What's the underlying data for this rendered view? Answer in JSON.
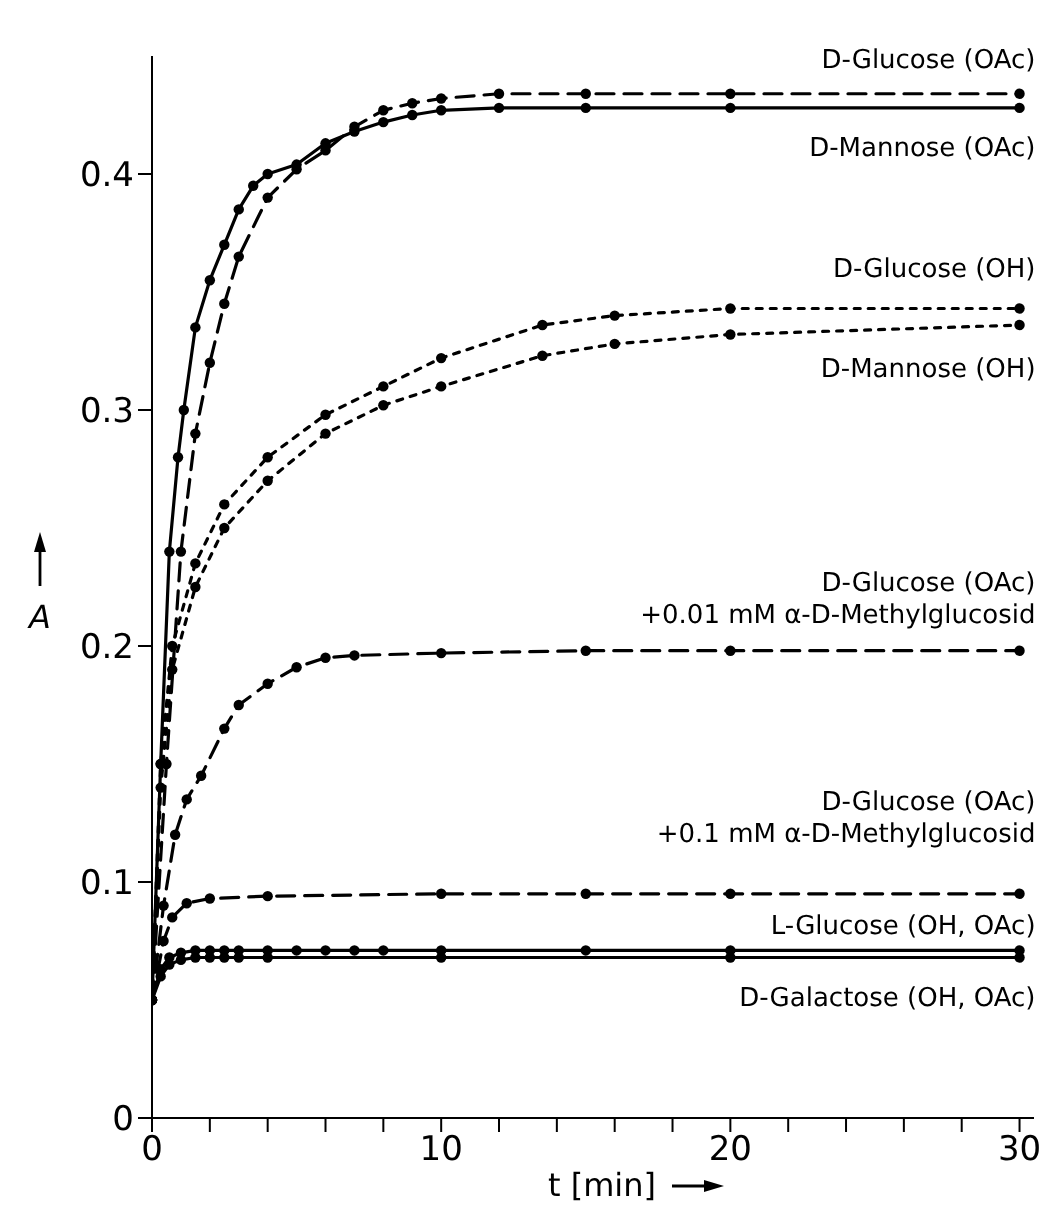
{
  "chart_data": {
    "type": "line",
    "xlabel": "t [min]",
    "ylabel": "A",
    "xlim": [
      0,
      30.5
    ],
    "ylim": [
      0,
      0.45
    ],
    "xticks": [
      0,
      {
        "value": 2,
        "label": null
      },
      {
        "value": 4,
        "label": null
      },
      {
        "value": 6,
        "label": null
      },
      {
        "value": 8,
        "label": null
      },
      10,
      {
        "value": 12,
        "label": null
      },
      {
        "value": 14,
        "label": null
      },
      {
        "value": 16,
        "label": null
      },
      {
        "value": 18,
        "label": null
      },
      20,
      {
        "value": 22,
        "label": null
      },
      {
        "value": 24,
        "label": null
      },
      {
        "value": 26,
        "label": null
      },
      {
        "value": 28,
        "label": null
      },
      30
    ],
    "yticks": [
      0,
      0.1,
      0.2,
      0.3,
      0.4
    ],
    "grid": false,
    "marker": "circle",
    "series": [
      {
        "name": "D-Glucose (OAc)",
        "color": "#000000",
        "line_style": "dashed",
        "x": [
          0,
          0.5,
          1,
          1.5,
          2,
          2.5,
          3,
          4,
          5,
          6,
          7,
          8,
          9,
          10,
          12,
          15,
          20,
          30
        ],
        "values": [
          0.05,
          0.15,
          0.24,
          0.29,
          0.32,
          0.345,
          0.365,
          0.39,
          0.402,
          0.41,
          0.42,
          0.427,
          0.43,
          0.432,
          0.434,
          0.434,
          0.434,
          0.434
        ]
      },
      {
        "name": "D-Mannose (OAc)",
        "color": "#000000",
        "line_style": "solid",
        "x": [
          0,
          0.3,
          0.6,
          0.9,
          1.1,
          1.5,
          2,
          2.5,
          3,
          3.5,
          4,
          5,
          6,
          7,
          8,
          9,
          10,
          12,
          15,
          20,
          30
        ],
        "values": [
          0.05,
          0.15,
          0.24,
          0.28,
          0.3,
          0.335,
          0.355,
          0.37,
          0.385,
          0.395,
          0.4,
          0.404,
          0.413,
          0.418,
          0.422,
          0.425,
          0.427,
          0.428,
          0.428,
          0.428,
          0.428
        ]
      },
      {
        "name": "D-Glucose (OH)",
        "color": "#000000",
        "line_style": "dotted",
        "x": [
          0,
          0.3,
          0.7,
          1.5,
          2.5,
          4,
          6,
          8,
          10,
          13.5,
          16,
          20,
          30
        ],
        "values": [
          0.05,
          0.15,
          0.2,
          0.235,
          0.26,
          0.28,
          0.298,
          0.31,
          0.322,
          0.336,
          0.34,
          0.343,
          0.343
        ]
      },
      {
        "name": "D-Mannose (OH)",
        "color": "#000000",
        "line_style": "dotted",
        "x": [
          0,
          0.3,
          0.7,
          1.5,
          2.5,
          4,
          6,
          8,
          10,
          13.5,
          16,
          20,
          30
        ],
        "values": [
          0.05,
          0.14,
          0.19,
          0.225,
          0.25,
          0.27,
          0.29,
          0.302,
          0.31,
          0.323,
          0.328,
          0.332,
          0.336
        ]
      },
      {
        "name": "D-Glucose (OAc)\n+0.01 mM α-D-Methylglucosid",
        "color": "#000000",
        "line_style": "dashed",
        "x": [
          0,
          0.4,
          0.8,
          1.2,
          1.7,
          2.5,
          3,
          4,
          5,
          6,
          7,
          10,
          15,
          20,
          30
        ],
        "values": [
          0.05,
          0.09,
          0.12,
          0.135,
          0.145,
          0.165,
          0.175,
          0.184,
          0.191,
          0.195,
          0.196,
          0.197,
          0.198,
          0.198,
          0.198
        ]
      },
      {
        "name": "D-Glucose (OAc)\n+0.1 mM α-D-Methylglucosid",
        "color": "#000000",
        "line_style": "dashed",
        "x": [
          0,
          0.4,
          0.7,
          1.2,
          2,
          4,
          10,
          15,
          20,
          30
        ],
        "values": [
          0.05,
          0.075,
          0.085,
          0.091,
          0.093,
          0.094,
          0.095,
          0.095,
          0.095,
          0.095
        ]
      },
      {
        "name": "L-Glucose (OH, OAc)",
        "color": "#000000",
        "line_style": "solid",
        "x": [
          0,
          0.3,
          0.6,
          1,
          1.5,
          2,
          2.5,
          3,
          4,
          5,
          6,
          7,
          8,
          10,
          15,
          20,
          30
        ],
        "values": [
          0.05,
          0.063,
          0.068,
          0.07,
          0.071,
          0.071,
          0.071,
          0.071,
          0.071,
          0.071,
          0.071,
          0.071,
          0.071,
          0.071,
          0.071,
          0.071,
          0.071
        ]
      },
      {
        "name": "D-Galactose (OH, OAc)",
        "color": "#000000",
        "line_style": "solid",
        "x": [
          0,
          0.3,
          0.6,
          1,
          1.5,
          2,
          2.5,
          3,
          4,
          10,
          20,
          30
        ],
        "values": [
          0.05,
          0.06,
          0.065,
          0.067,
          0.068,
          0.068,
          0.068,
          0.068,
          0.068,
          0.068,
          0.068,
          0.068
        ]
      }
    ]
  }
}
